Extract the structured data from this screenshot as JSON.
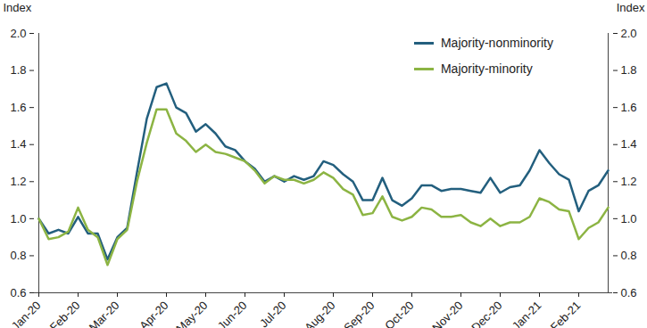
{
  "chart_data": {
    "type": "line",
    "y_label": "Index",
    "categories": [
      "Jan-20",
      null,
      null,
      null,
      "Feb-20",
      null,
      null,
      null,
      "Mar-20",
      null,
      null,
      null,
      null,
      "Apr-20",
      null,
      null,
      null,
      "May-20",
      null,
      null,
      null,
      "Jun-20",
      null,
      null,
      null,
      "Jul-20",
      null,
      null,
      null,
      null,
      "Aug-20",
      null,
      null,
      null,
      "Sep-20",
      null,
      null,
      null,
      "Oct-20",
      null,
      null,
      null,
      null,
      "Nov-20",
      null,
      null,
      null,
      "Dec-20",
      null,
      null,
      null,
      "Jan-21",
      null,
      null,
      null,
      "Feb-21",
      null,
      null,
      null
    ],
    "series": [
      {
        "name": "Majority-nonminority",
        "color": "#235f7e",
        "values": [
          1.0,
          0.92,
          0.94,
          0.92,
          1.01,
          0.92,
          0.92,
          0.78,
          0.9,
          0.95,
          1.25,
          1.54,
          1.71,
          1.73,
          1.6,
          1.57,
          1.47,
          1.51,
          1.46,
          1.39,
          1.37,
          1.31,
          1.27,
          1.2,
          1.23,
          1.2,
          1.23,
          1.21,
          1.23,
          1.31,
          1.29,
          1.24,
          1.2,
          1.1,
          1.1,
          1.22,
          1.1,
          1.07,
          1.11,
          1.18,
          1.18,
          1.15,
          1.16,
          1.16,
          1.15,
          1.14,
          1.22,
          1.14,
          1.17,
          1.18,
          1.26,
          1.37,
          1.3,
          1.24,
          1.21,
          1.04,
          1.15,
          1.18,
          1.26
        ]
      },
      {
        "name": "Majority-minority",
        "color": "#8cb443",
        "values": [
          1.0,
          0.89,
          0.9,
          0.93,
          1.06,
          0.94,
          0.9,
          0.75,
          0.89,
          0.94,
          1.2,
          1.41,
          1.59,
          1.59,
          1.46,
          1.42,
          1.36,
          1.4,
          1.36,
          1.35,
          1.33,
          1.31,
          1.26,
          1.19,
          1.23,
          1.21,
          1.21,
          1.19,
          1.21,
          1.25,
          1.22,
          1.16,
          1.13,
          1.02,
          1.03,
          1.12,
          1.01,
          0.99,
          1.01,
          1.06,
          1.05,
          1.01,
          1.01,
          1.02,
          0.98,
          0.96,
          1.0,
          0.96,
          0.98,
          0.98,
          1.01,
          1.11,
          1.09,
          1.05,
          1.04,
          0.89,
          0.95,
          0.98,
          1.06
        ]
      }
    ],
    "ylim": [
      0.6,
      2.0
    ],
    "yticks": [
      0.6,
      0.8,
      {
        "value": 1,
        "label": "1.0"
      },
      1.2,
      1.4,
      1.6,
      1.8,
      {
        "value": 2,
        "label": "2.0"
      }
    ],
    "grid": false,
    "legend": "top-right"
  }
}
